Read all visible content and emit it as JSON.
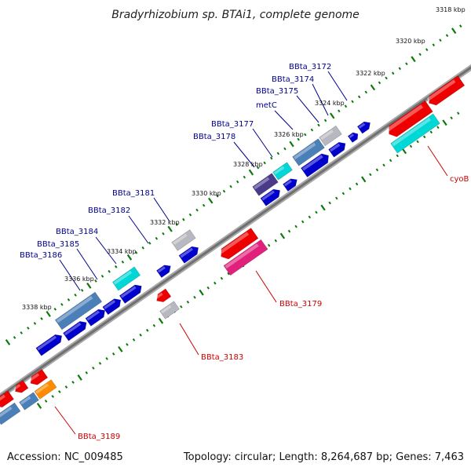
{
  "title": "Bradyrhizobium sp. BTAi1, complete genome",
  "footer": {
    "accession": "Accession: NC_009485",
    "summary": "Topology: circular; Length: 8,264,687 bp; Genes: 7,463"
  },
  "scale_ticks": [
    "3318 kbp",
    "3320 kbp",
    "3322 kbp",
    "3324 kbp",
    "3326 kbp",
    "3328 kbp",
    "3330 kbp",
    "3332 kbp",
    "3334 kbp",
    "3336 kbp",
    "3338 kbp"
  ],
  "top_gene_labels": [
    "BBta_3172",
    "BBta_3174",
    "BBta_3175",
    "metC",
    "BBta_3177",
    "BBta_3178",
    "BBta_3181",
    "BBta_3182",
    "BBta_3184",
    "BBta_3185",
    "BBta_3186"
  ],
  "bottom_gene_labels": [
    "cyoB",
    "BBta_3179",
    "BBta_3183",
    "BBta_3189"
  ],
  "colors": {
    "backbone": "#808080",
    "forward_label": "#00008b",
    "reverse_label": "#cc0000",
    "blue": "#0000cc",
    "steelblue": "#4a7fb8",
    "grey": "#b8b8c0",
    "cyan": "#00d8d8",
    "darkpurple": "#4a3a8a",
    "red": "#ee0000",
    "pink": "#e0207a",
    "orange": "#ff8c00",
    "tick_green": "#0a7a0a"
  }
}
